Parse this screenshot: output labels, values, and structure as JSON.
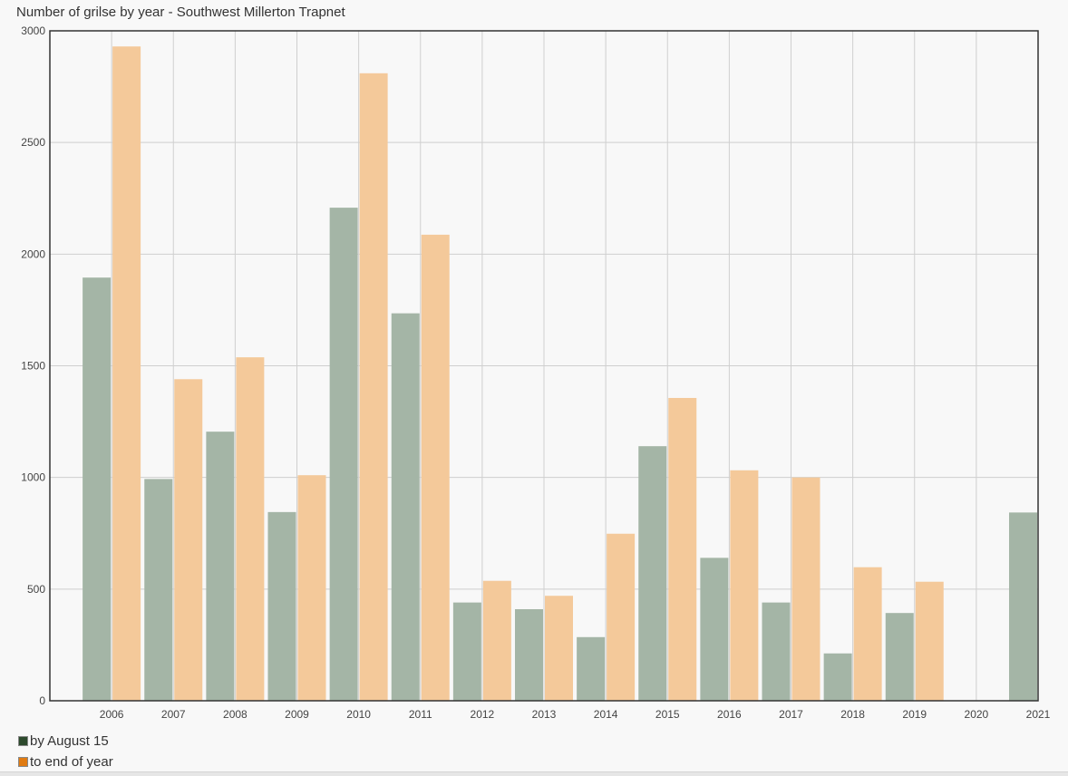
{
  "chart_data": {
    "type": "bar",
    "title": "Number of grilse by year - Southwest Millerton Trapnet",
    "categories": [
      "2006",
      "2007",
      "2008",
      "2009",
      "2010",
      "2011",
      "2012",
      "2013",
      "2014",
      "2015",
      "2016",
      "2017",
      "2018",
      "2019",
      "2020",
      "2021"
    ],
    "x_tick_labels": [
      "2006",
      "2007",
      "2008",
      "2009",
      "2010",
      "2011",
      "2012",
      "2013",
      "2014",
      "2015",
      "2016",
      "2017",
      "2018",
      "2019",
      "2020",
      "2021"
    ],
    "ylim": [
      0,
      3000
    ],
    "y_ticks": [
      0,
      500,
      1000,
      1500,
      2000,
      2500,
      3000
    ],
    "grid": true,
    "legend": "bottom-left",
    "series": [
      {
        "name": "by August 15",
        "color": "#a4b5a6",
        "legend_color": "#2d4a2d",
        "values": [
          1895,
          993,
          1205,
          845,
          2208,
          1735,
          440,
          410,
          285,
          1140,
          640,
          440,
          212,
          393,
          null,
          843
        ]
      },
      {
        "name": "to end of year",
        "color": "#f4c99a",
        "legend_color": "#e07b12",
        "values": [
          2930,
          1440,
          1538,
          1010,
          2810,
          2087,
          537,
          470,
          748,
          1356,
          1032,
          1000,
          598,
          533,
          null,
          null
        ]
      }
    ]
  }
}
